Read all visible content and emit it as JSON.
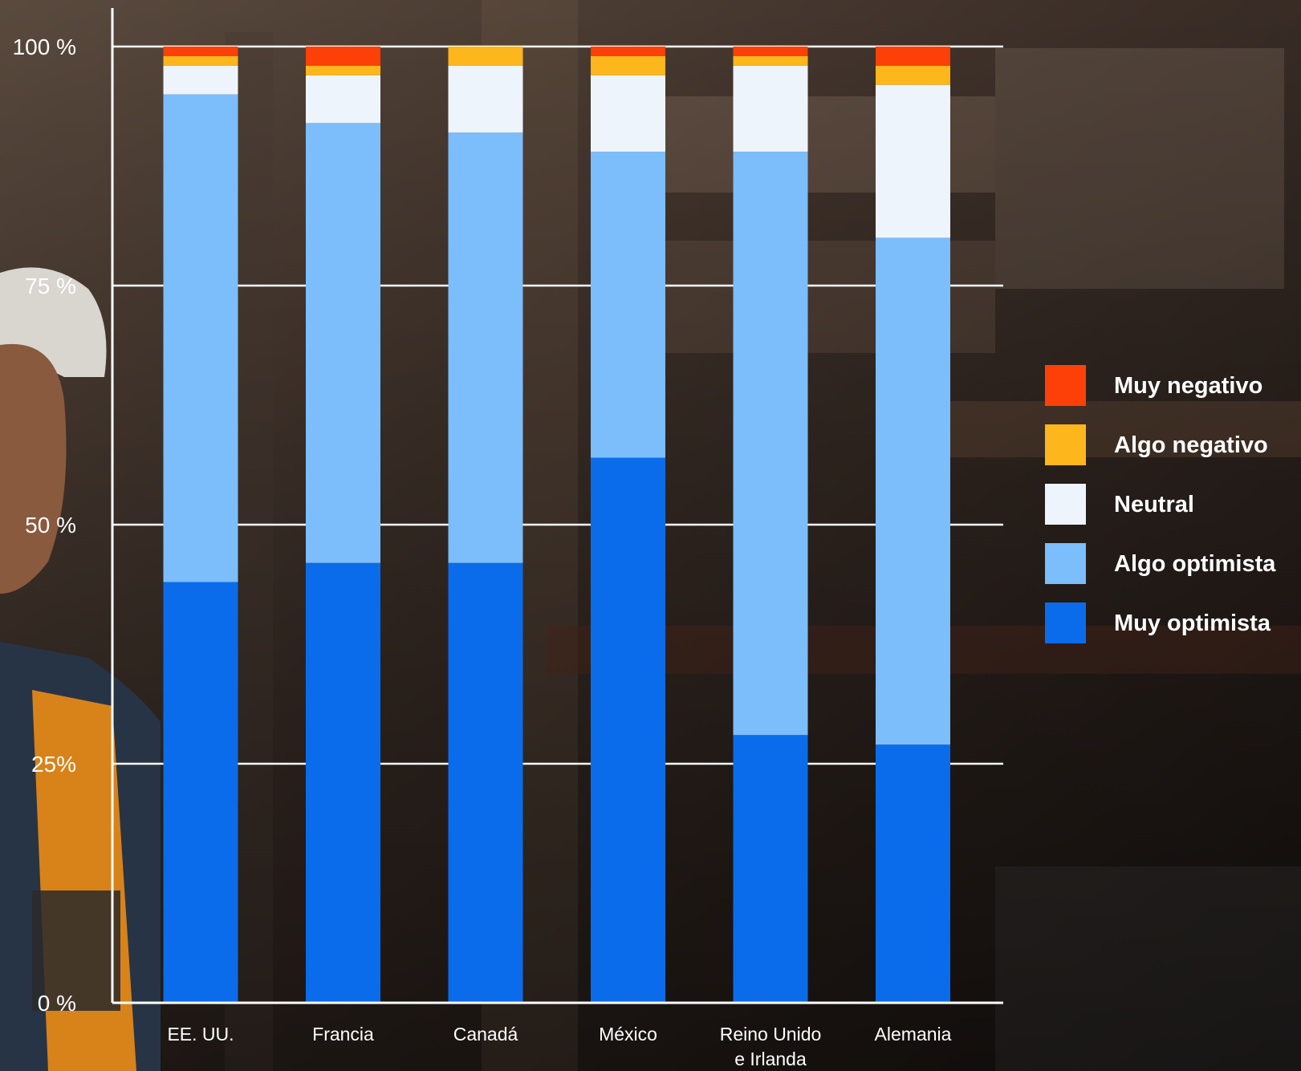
{
  "chart_data": {
    "type": "bar",
    "stacked": true,
    "categories": [
      "EE. UU.",
      "Francia",
      "Canadá",
      "México",
      "Reino Unido e Irlanda",
      "Alemania"
    ],
    "category_lines": [
      [
        "EE. UU."
      ],
      [
        "Francia"
      ],
      [
        "Canadá"
      ],
      [
        "México"
      ],
      [
        "Reino Unido",
        "e Irlanda"
      ],
      [
        "Alemania"
      ]
    ],
    "series": [
      {
        "name": "Muy optimista",
        "color": "#0a6cea",
        "values": [
          44,
          46,
          46,
          57,
          28,
          27
        ]
      },
      {
        "name": "Algo optimista",
        "color": "#7cbdfb",
        "values": [
          51,
          46,
          45,
          32,
          61,
          53
        ]
      },
      {
        "name": "Neutral",
        "color": "#eef4fb",
        "values": [
          3,
          5,
          7,
          8,
          9,
          16
        ]
      },
      {
        "name": "Algo negativo",
        "color": "#fdb61c",
        "values": [
          1,
          1,
          2,
          2,
          1,
          2
        ]
      },
      {
        "name": "Muy negativo",
        "color": "#fd4008",
        "values": [
          1,
          2,
          0,
          1,
          1,
          2
        ]
      }
    ],
    "legend_order": [
      "Muy negativo",
      "Algo negativo",
      "Neutral",
      "Algo optimista",
      "Muy optimista"
    ],
    "legend_placement": "right",
    "y_ticks": [
      {
        "value": 0,
        "label": "0 %"
      },
      {
        "value": 25,
        "label": "25%"
      },
      {
        "value": 50,
        "label": "50 %"
      },
      {
        "value": 75,
        "label": "75 %"
      },
      {
        "value": 100,
        "label": "100 %"
      }
    ],
    "ylim": [
      0,
      100
    ],
    "grid": true
  }
}
